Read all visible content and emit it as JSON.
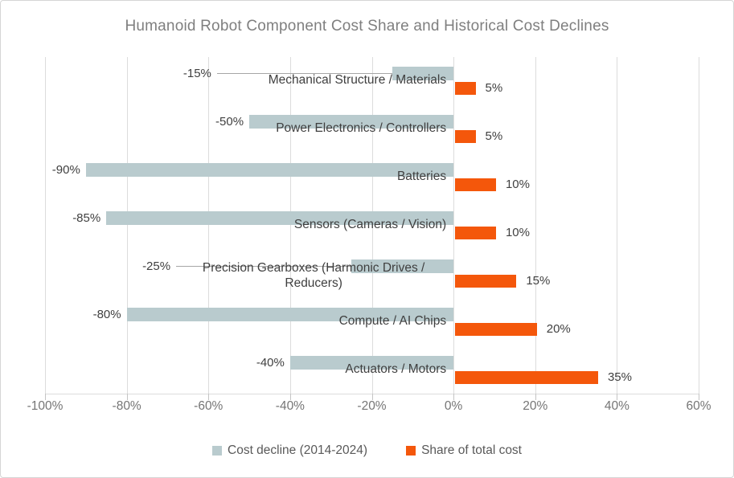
{
  "title": "Humanoid Robot Component Cost Share and Historical Cost Declines",
  "chart_data": {
    "type": "bar",
    "orientation": "horizontal",
    "title": "Humanoid Robot Component Cost Share and Historical Cost Declines",
    "grid": true,
    "legend_position": "bottom",
    "x_axis": {
      "min": -100,
      "max": 60,
      "tick_step": 20,
      "ticks": [
        {
          "value": -100,
          "label": "-100%"
        },
        {
          "value": -80,
          "label": "-80%"
        },
        {
          "value": -60,
          "label": "-60%"
        },
        {
          "value": -40,
          "label": "-40%"
        },
        {
          "value": -20,
          "label": "-20%"
        },
        {
          "value": 0,
          "label": "0%"
        },
        {
          "value": 20,
          "label": "20%"
        },
        {
          "value": 40,
          "label": "40%"
        },
        {
          "value": 60,
          "label": "60%"
        }
      ]
    },
    "series": [
      {
        "name": "Cost decline (2014-2024)",
        "color": "#b9cbce"
      },
      {
        "name": "Share of total cost",
        "color": "#f4570b"
      }
    ],
    "rows": [
      {
        "name": "Mechanical Structure / Materials",
        "decline": -15,
        "decline_label": "-15%",
        "share": 5,
        "share_label": "5%",
        "leader": true
      },
      {
        "name": "Power Electronics / Controllers",
        "decline": -50,
        "decline_label": "-50%",
        "share": 5,
        "share_label": "5%"
      },
      {
        "name": "Batteries",
        "decline": -90,
        "decline_label": "-90%",
        "share": 10,
        "share_label": "10%"
      },
      {
        "name": "Sensors (Cameras / Vision)",
        "decline": -85,
        "decline_label": "-85%",
        "share": 10,
        "share_label": "10%"
      },
      {
        "name": "Precision Gearboxes (Harmonic Drives / Reducers)",
        "decline": -25,
        "decline_label": "-25%",
        "share": 15,
        "share_label": "15%",
        "leader": true
      },
      {
        "name": "Compute / AI Chips",
        "decline": -80,
        "decline_label": "-80%",
        "share": 20,
        "share_label": "20%"
      },
      {
        "name": "Actuators / Motors",
        "decline": -40,
        "decline_label": "-40%",
        "share": 35,
        "share_label": "35%"
      }
    ]
  },
  "legend": {
    "items": [
      {
        "label": "Cost decline (2014-2024)",
        "color": "#b9cbce"
      },
      {
        "label": "Share of total cost",
        "color": "#f4570b"
      }
    ]
  }
}
